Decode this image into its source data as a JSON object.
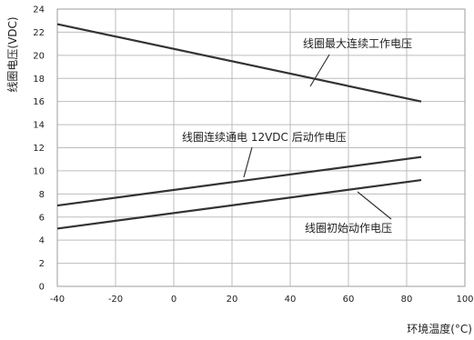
{
  "chart_data": {
    "type": "line",
    "xlabel": "环境温度(°C)",
    "ylabel": "线圈电压(VDC)",
    "xlim": [
      -40,
      100
    ],
    "ylim": [
      0,
      24
    ],
    "xticks": [
      -40,
      -20,
      0,
      20,
      40,
      60,
      80,
      100
    ],
    "yticks": [
      0,
      2,
      4,
      6,
      8,
      10,
      12,
      14,
      16,
      18,
      20,
      22,
      24
    ],
    "grid": true,
    "series": [
      {
        "name": "线圈最大连续工作电压",
        "x": [
          -40,
          85
        ],
        "y": [
          22.7,
          16.0
        ]
      },
      {
        "name": "线圈连续通电 12VDC 后动作电压",
        "x": [
          -40,
          85
        ],
        "y": [
          7.0,
          11.2
        ]
      },
      {
        "name": "线圈初始动作电压",
        "x": [
          -40,
          85
        ],
        "y": [
          5.0,
          9.2
        ]
      }
    ],
    "annotations": [
      {
        "text": "线圈最大连续工作电压",
        "series": 0
      },
      {
        "text": "线圈连续通电 12VDC 后动作电压",
        "series": 1
      },
      {
        "text": "线圈初始动作电压",
        "series": 2
      }
    ]
  }
}
